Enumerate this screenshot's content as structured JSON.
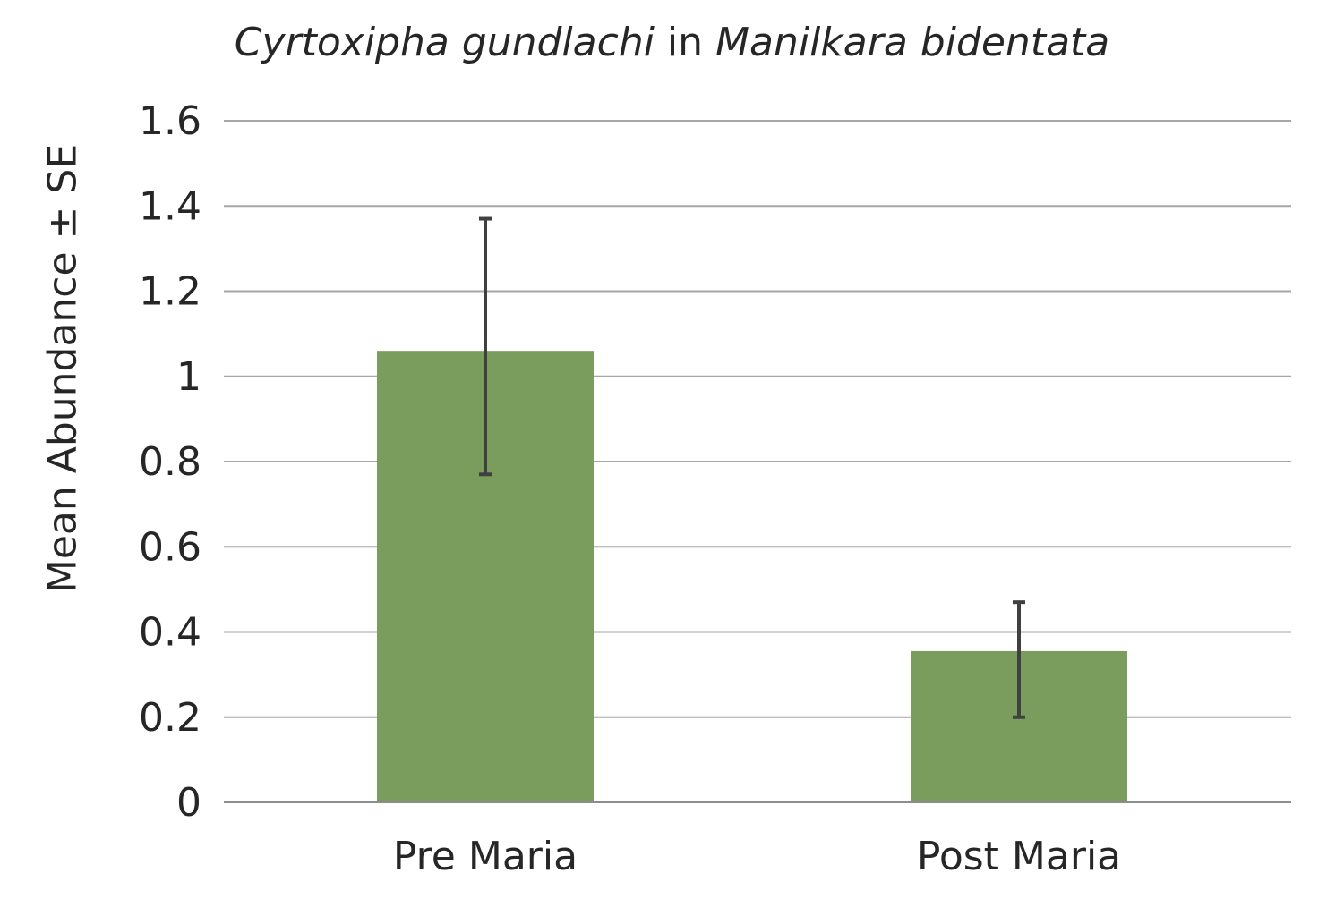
{
  "chart_data": {
    "type": "bar",
    "title_parts": [
      {
        "text": "Cyrtoxipha gundlachi",
        "italic": true
      },
      {
        "text": " in ",
        "italic": false
      },
      {
        "text": "Manilkara bidentata",
        "italic": true
      }
    ],
    "xlabel": "",
    "ylabel": "Mean Abundance ± SE",
    "categories": [
      "Pre Maria",
      "Post Maria"
    ],
    "values": [
      1.06,
      0.355
    ],
    "error_low": [
      0.77,
      0.2
    ],
    "error_high": [
      1.37,
      0.47
    ],
    "ylim": [
      0,
      1.6
    ],
    "yticks": [
      0,
      0.2,
      0.4,
      0.6,
      0.8,
      1,
      1.2,
      1.4,
      1.6
    ],
    "ytick_labels": [
      "0",
      "0.2",
      "0.4",
      "0.6",
      "0.8",
      "1",
      "1.2",
      "1.4",
      "1.6"
    ],
    "grid": true,
    "legend": "none",
    "colors": {
      "bar": "#7a9c5c",
      "error_bar": "#404040",
      "grid": "#a6a6a6",
      "axis": "#8c8c8c"
    }
  }
}
